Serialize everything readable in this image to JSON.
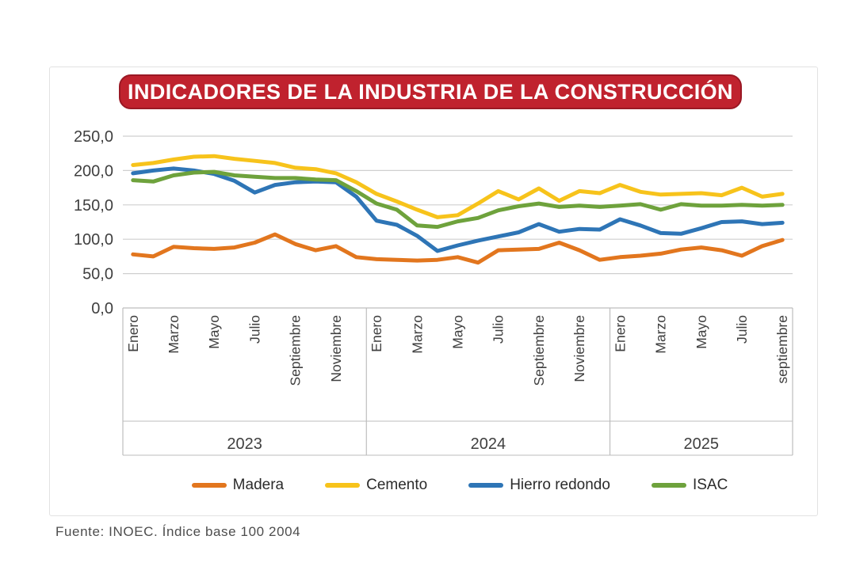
{
  "title": "INDICADORES DE LA INDUSTRIA DE LA CONSTRUCCIÓN",
  "footer": "Fuente: INOEC. Índice base 100 2004",
  "colors": {
    "title_bg": "#c0222e",
    "title_border": "#9a1824",
    "grid": "#cfcfcf",
    "band_border": "#bdbdbd",
    "axis_text": "#3f3f3f"
  },
  "chart_data": {
    "type": "line",
    "title": "INDICADORES DE LA INDUSTRIA DE LA CONSTRUCCIÓN",
    "xlabel": "",
    "ylabel": "",
    "ylim": [
      0,
      250
    ],
    "grid": true,
    "legend_position": "bottom",
    "yticks": [
      {
        "value": 250,
        "label": "250,0"
      },
      {
        "value": 200,
        "label": "200,0"
      },
      {
        "value": 150,
        "label": "150,0"
      },
      {
        "value": 100,
        "label": "100,0"
      },
      {
        "value": 50,
        "label": "50,0"
      },
      {
        "value": 0,
        "label": "0,0"
      }
    ],
    "years": [
      {
        "label": "2023",
        "month_labels": [
          "Enero",
          "",
          "Marzo",
          "",
          "Mayo",
          "",
          "Julio",
          "",
          "Septiembre",
          "",
          "Noviembre",
          ""
        ]
      },
      {
        "label": "2024",
        "month_labels": [
          "Enero",
          "",
          "Marzo",
          "",
          "Mayo",
          "",
          "Julio",
          "",
          "Septiembre",
          "",
          "Noviembre",
          ""
        ]
      },
      {
        "label": "2025",
        "month_labels": [
          "Enero",
          "",
          "Marzo",
          "",
          "Mayo",
          "",
          "Julio",
          "",
          "septiembre"
        ]
      }
    ],
    "series": [
      {
        "name": "Madera",
        "color": "#e2761e",
        "values": [
          78,
          75,
          89,
          87,
          86,
          88,
          95,
          107,
          93,
          84,
          90,
          74,
          71,
          70,
          69,
          70,
          74,
          66,
          84,
          85,
          86,
          95,
          84,
          70,
          74,
          76,
          79,
          85,
          88,
          84,
          76,
          90,
          99
        ]
      },
      {
        "name": "Cemento",
        "color": "#f7c31b",
        "values": [
          208,
          211,
          216,
          220,
          221,
          217,
          214,
          211,
          204,
          202,
          196,
          183,
          166,
          155,
          143,
          132,
          135,
          152,
          170,
          158,
          174,
          156,
          170,
          167,
          179,
          169,
          165,
          166,
          167,
          164,
          175,
          162,
          166
        ]
      },
      {
        "name": "Hierro redondo",
        "color": "#2e75b6",
        "values": [
          196,
          200,
          203,
          200,
          195,
          185,
          168,
          179,
          183,
          184,
          183,
          162,
          127,
          121,
          105,
          83,
          91,
          98,
          104,
          110,
          122,
          111,
          115,
          114,
          129,
          120,
          109,
          108,
          116,
          125,
          126,
          122,
          124
        ]
      },
      {
        "name": "ISAC",
        "color": "#6ea23c",
        "values": [
          186,
          184,
          193,
          197,
          198,
          193,
          191,
          189,
          189,
          187,
          186,
          170,
          152,
          143,
          120,
          118,
          126,
          131,
          142,
          148,
          152,
          147,
          149,
          147,
          149,
          151,
          143,
          151,
          149,
          149,
          150,
          149,
          150
        ]
      }
    ]
  }
}
